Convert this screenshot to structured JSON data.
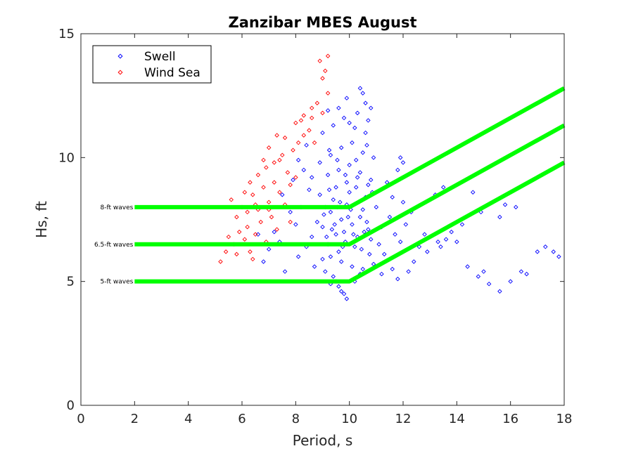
{
  "chart_data": {
    "type": "scatter",
    "title": "Zanzibar MBES August",
    "xlabel": "Period, s",
    "ylabel": "Hs, ft",
    "xlim": [
      0,
      18
    ],
    "ylim": [
      0,
      15
    ],
    "xticks": [
      0,
      2,
      4,
      6,
      8,
      10,
      12,
      14,
      16,
      18
    ],
    "yticks": [
      0,
      5,
      10,
      15
    ],
    "grid": false,
    "legend_position": "top-left",
    "series": [
      {
        "name": "Swell",
        "marker": "diamond",
        "color": "#0000ff",
        "points": [
          [
            9.0,
            7.2
          ],
          [
            9.3,
            7.8
          ],
          [
            9.5,
            6.9
          ],
          [
            9.7,
            7.5
          ],
          [
            9.9,
            8.1
          ],
          [
            10.1,
            7.3
          ],
          [
            10.3,
            6.8
          ],
          [
            10.5,
            7.9
          ],
          [
            10.7,
            7.1
          ],
          [
            9.2,
            6.5
          ],
          [
            9.4,
            8.3
          ],
          [
            9.6,
            6.2
          ],
          [
            9.8,
            7.0
          ],
          [
            10.0,
            8.6
          ],
          [
            10.2,
            6.4
          ],
          [
            10.4,
            7.6
          ],
          [
            10.6,
            8.4
          ],
          [
            10.8,
            6.7
          ],
          [
            9.1,
            8.0
          ],
          [
            9.3,
            6.0
          ],
          [
            9.5,
            8.8
          ],
          [
            9.7,
            5.8
          ],
          [
            9.9,
            9.0
          ],
          [
            10.1,
            5.6
          ],
          [
            10.3,
            9.2
          ],
          [
            10.5,
            5.5
          ],
          [
            10.7,
            8.9
          ],
          [
            9.0,
            5.9
          ],
          [
            8.8,
            7.4
          ],
          [
            8.6,
            6.8
          ],
          [
            8.9,
            8.5
          ],
          [
            9.2,
            9.3
          ],
          [
            9.6,
            9.5
          ],
          [
            10.0,
            9.7
          ],
          [
            10.4,
            9.4
          ],
          [
            10.8,
            9.1
          ],
          [
            11.0,
            8.0
          ],
          [
            11.2,
            7.2
          ],
          [
            11.1,
            6.5
          ],
          [
            10.9,
            5.7
          ],
          [
            9.4,
            5.2
          ],
          [
            9.6,
            4.8
          ],
          [
            9.8,
            4.5
          ],
          [
            9.9,
            4.3
          ],
          [
            9.7,
            4.6
          ],
          [
            9.5,
            5.0
          ],
          [
            10.2,
            5.0
          ],
          [
            10.4,
            5.3
          ],
          [
            9.3,
            4.9
          ],
          [
            9.1,
            5.4
          ],
          [
            8.6,
            9.2
          ],
          [
            8.9,
            9.8
          ],
          [
            9.3,
            10.1
          ],
          [
            9.7,
            10.4
          ],
          [
            10.1,
            10.6
          ],
          [
            10.5,
            10.2
          ],
          [
            10.9,
            10.0
          ],
          [
            8.3,
            9.5
          ],
          [
            8.5,
            8.7
          ],
          [
            8.2,
            8.0
          ],
          [
            8.0,
            7.3
          ],
          [
            8.4,
            6.4
          ],
          [
            8.1,
            6.0
          ],
          [
            8.7,
            5.6
          ],
          [
            7.8,
            7.8
          ],
          [
            7.5,
            8.5
          ],
          [
            7.2,
            7.0
          ],
          [
            7.0,
            6.3
          ],
          [
            6.8,
            5.8
          ],
          [
            7.4,
            6.6
          ],
          [
            7.6,
            5.4
          ],
          [
            6.6,
            6.9
          ],
          [
            7.9,
            9.1
          ],
          [
            8.1,
            9.9
          ],
          [
            8.4,
            10.5
          ],
          [
            9.0,
            11.0
          ],
          [
            9.4,
            11.3
          ],
          [
            9.8,
            11.6
          ],
          [
            10.2,
            11.2
          ],
          [
            10.6,
            11.0
          ],
          [
            10.4,
            12.8
          ],
          [
            10.5,
            12.6
          ],
          [
            10.6,
            12.2
          ],
          [
            10.8,
            12.0
          ],
          [
            9.9,
            12.4
          ],
          [
            9.6,
            12.0
          ],
          [
            9.2,
            11.9
          ],
          [
            10.3,
            11.8
          ],
          [
            10.0,
            11.4
          ],
          [
            10.7,
            11.5
          ],
          [
            11.4,
            9.0
          ],
          [
            11.6,
            8.4
          ],
          [
            11.8,
            9.5
          ],
          [
            11.9,
            10.0
          ],
          [
            12.0,
            9.8
          ],
          [
            11.5,
            7.6
          ],
          [
            11.7,
            6.9
          ],
          [
            11.3,
            6.1
          ],
          [
            11.9,
            6.6
          ],
          [
            12.1,
            7.3
          ],
          [
            12.3,
            7.8
          ],
          [
            12.0,
            8.2
          ],
          [
            11.6,
            5.5
          ],
          [
            11.8,
            5.1
          ],
          [
            12.2,
            5.4
          ],
          [
            12.4,
            5.8
          ],
          [
            11.2,
            5.3
          ],
          [
            12.6,
            6.4
          ],
          [
            12.8,
            6.9
          ],
          [
            13.0,
            8.3
          ],
          [
            13.2,
            8.5
          ],
          [
            13.5,
            8.8
          ],
          [
            13.8,
            7.0
          ],
          [
            14.0,
            6.6
          ],
          [
            14.4,
            5.6
          ],
          [
            14.8,
            5.2
          ],
          [
            15.2,
            4.9
          ],
          [
            15.6,
            4.6
          ],
          [
            16.0,
            5.0
          ],
          [
            16.4,
            5.4
          ],
          [
            16.2,
            8.0
          ],
          [
            15.8,
            8.1
          ],
          [
            15.6,
            7.6
          ],
          [
            14.6,
            8.6
          ],
          [
            14.2,
            7.3
          ],
          [
            13.6,
            6.7
          ],
          [
            13.4,
            6.4
          ],
          [
            13.3,
            6.6
          ],
          [
            12.9,
            6.2
          ],
          [
            17.0,
            6.2
          ],
          [
            17.3,
            6.4
          ],
          [
            17.6,
            6.2
          ],
          [
            17.8,
            6.0
          ],
          [
            16.6,
            5.3
          ],
          [
            15.0,
            5.4
          ],
          [
            14.9,
            7.8
          ],
          [
            9.05,
            7.7
          ],
          [
            9.25,
            8.7
          ],
          [
            9.45,
            7.3
          ],
          [
            9.65,
            8.2
          ],
          [
            9.85,
            6.6
          ],
          [
            10.05,
            7.9
          ],
          [
            10.25,
            8.8
          ],
          [
            10.45,
            6.3
          ],
          [
            10.65,
            7.4
          ],
          [
            10.85,
            8.6
          ],
          [
            9.15,
            6.8
          ],
          [
            9.35,
            7.1
          ],
          [
            9.55,
            8.0
          ],
          [
            9.75,
            6.4
          ],
          [
            9.95,
            7.6
          ],
          [
            10.15,
            6.9
          ],
          [
            10.35,
            8.2
          ],
          [
            10.55,
            7.0
          ],
          [
            10.75,
            6.1
          ],
          [
            9.85,
            9.3
          ],
          [
            9.55,
            9.9
          ],
          [
            10.25,
            9.9
          ],
          [
            9.25,
            10.3
          ],
          [
            10.65,
            10.5
          ]
        ]
      },
      {
        "name": "Wind Sea",
        "marker": "diamond",
        "color": "#ff0000",
        "points": [
          [
            5.6,
            8.3
          ],
          [
            5.8,
            7.6
          ],
          [
            6.0,
            8.0
          ],
          [
            6.2,
            7.2
          ],
          [
            6.4,
            8.5
          ],
          [
            6.6,
            7.9
          ],
          [
            6.8,
            8.8
          ],
          [
            7.0,
            8.2
          ],
          [
            7.2,
            9.0
          ],
          [
            7.4,
            8.6
          ],
          [
            5.5,
            6.8
          ],
          [
            5.7,
            6.5
          ],
          [
            5.9,
            7.0
          ],
          [
            6.1,
            6.7
          ],
          [
            6.3,
            6.2
          ],
          [
            6.5,
            6.9
          ],
          [
            6.7,
            7.4
          ],
          [
            6.9,
            6.6
          ],
          [
            7.1,
            7.6
          ],
          [
            7.3,
            7.1
          ],
          [
            6.6,
            9.3
          ],
          [
            6.9,
            9.6
          ],
          [
            7.2,
            9.8
          ],
          [
            7.5,
            10.1
          ],
          [
            7.7,
            9.4
          ],
          [
            7.9,
            10.3
          ],
          [
            8.1,
            10.6
          ],
          [
            8.3,
            10.9
          ],
          [
            8.5,
            11.1
          ],
          [
            8.7,
            10.6
          ],
          [
            8.0,
            11.4
          ],
          [
            8.3,
            11.7
          ],
          [
            8.6,
            12.0
          ],
          [
            8.8,
            12.2
          ],
          [
            9.0,
            11.8
          ],
          [
            9.2,
            12.6
          ],
          [
            9.0,
            13.2
          ],
          [
            9.1,
            13.5
          ],
          [
            9.2,
            14.1
          ],
          [
            8.9,
            13.9
          ],
          [
            5.2,
            5.8
          ],
          [
            5.4,
            6.2
          ],
          [
            5.8,
            6.1
          ],
          [
            6.4,
            5.9
          ],
          [
            7.6,
            8.1
          ],
          [
            7.8,
            8.9
          ],
          [
            8.0,
            9.2
          ],
          [
            7.4,
            9.9
          ],
          [
            7.0,
            10.4
          ],
          [
            6.8,
            9.9
          ],
          [
            6.3,
            9.0
          ],
          [
            6.1,
            8.6
          ],
          [
            7.6,
            10.8
          ],
          [
            7.3,
            10.9
          ],
          [
            8.2,
            11.5
          ],
          [
            8.6,
            11.6
          ],
          [
            7.0,
            7.9
          ],
          [
            6.5,
            8.1
          ],
          [
            7.8,
            7.4
          ],
          [
            6.2,
            7.8
          ]
        ]
      }
    ],
    "lines": [
      {
        "label": "8-ft waves",
        "color": "#00ff00",
        "points": [
          [
            2,
            8.0
          ],
          [
            10,
            8.0
          ],
          [
            18,
            12.8
          ]
        ]
      },
      {
        "label": "6.5-ft waves",
        "color": "#00ff00",
        "points": [
          [
            2,
            6.5
          ],
          [
            10,
            6.5
          ],
          [
            18,
            11.3
          ]
        ]
      },
      {
        "label": "5-ft waves",
        "color": "#00ff00",
        "points": [
          [
            2,
            5.0
          ],
          [
            10,
            5.0
          ],
          [
            18,
            9.8
          ]
        ]
      }
    ]
  }
}
